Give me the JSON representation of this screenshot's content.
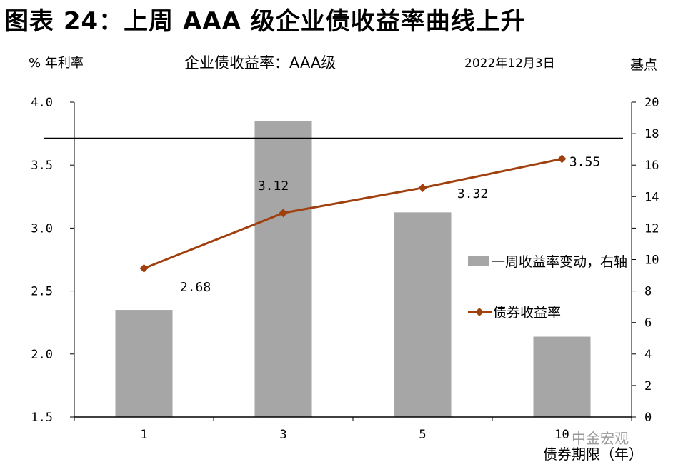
{
  "figure": {
    "heading": "图表 24：上周 AAA 级企业债收益率曲线上升",
    "left_unit": "% 年利率",
    "subtitle": "企业债收益率：AAA级",
    "date": "2022年12月3日",
    "right_unit": "基点",
    "watermark": "中金宏观"
  },
  "chart_data": {
    "type": "bar",
    "title": "企业债收益率：AAA级",
    "xlabel": "债券期限（年）",
    "ylabel_left": "% 年利率",
    "ylabel_right": "基点",
    "categories": [
      "1",
      "3",
      "5",
      "10"
    ],
    "series": [
      {
        "name": "一周收益率变动，右轴",
        "type": "bar",
        "axis": "right",
        "color": "#a6a6a6",
        "values": [
          6.8,
          18.8,
          13.0,
          5.1
        ]
      },
      {
        "name": "债券收益率",
        "type": "line",
        "axis": "left",
        "color": "#a0400e",
        "marker": "diamond",
        "values": [
          2.68,
          3.12,
          3.32,
          3.55
        ],
        "data_labels": [
          "2.68",
          "3.12",
          "3.32",
          "3.55"
        ]
      }
    ],
    "ylim_left": [
      1.5,
      4.0
    ],
    "yticks_left": [
      "1.5",
      "2.0",
      "2.5",
      "3.0",
      "3.5",
      "4.0"
    ],
    "ylim_right": [
      0,
      20
    ],
    "yticks_right": [
      "0",
      "2",
      "4",
      "6",
      "8",
      "10",
      "12",
      "14",
      "16",
      "18",
      "20"
    ],
    "reference_line_right": 17.7,
    "legend_position": "right",
    "grid": false
  }
}
